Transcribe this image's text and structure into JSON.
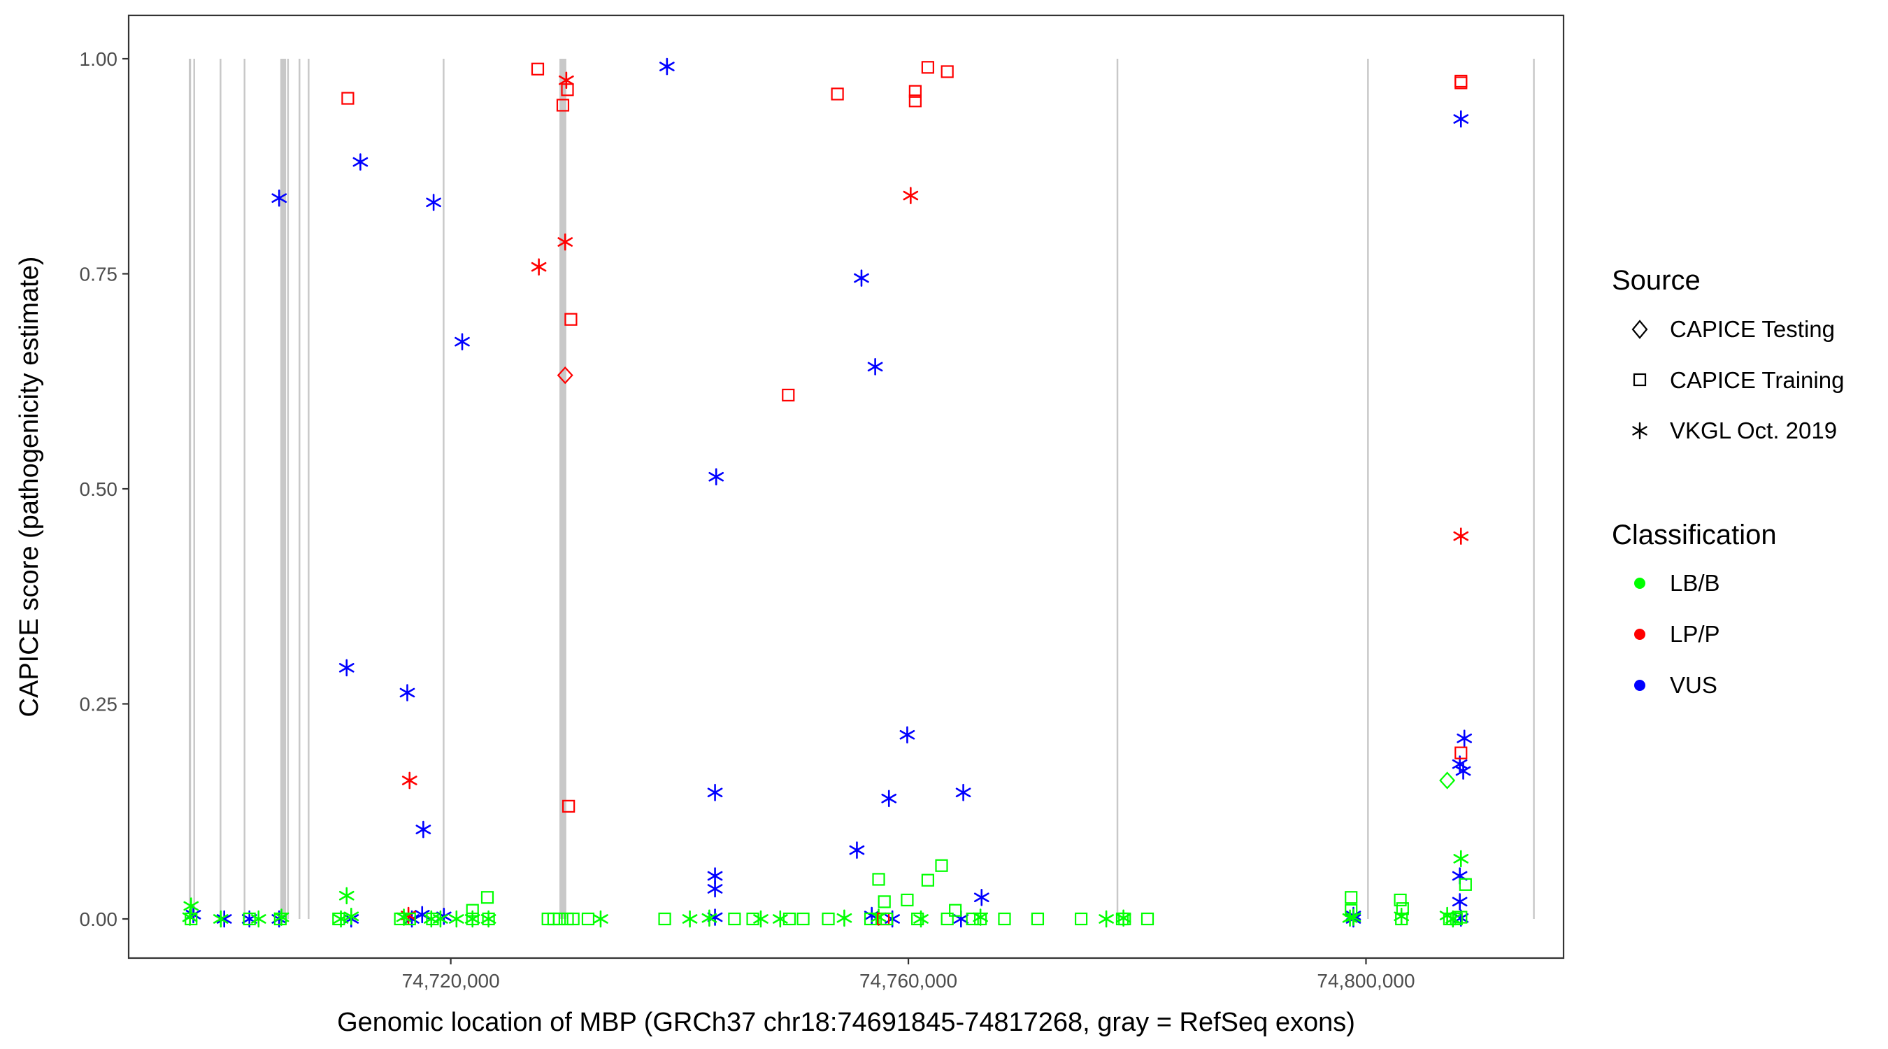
{
  "chart_data": {
    "type": "scatter",
    "xlabel": "Genomic location of MBP (GRCh37 chr18:74691845-74817268, gray = RefSeq exons)",
    "ylabel": "CAPICE score (pathogenicity estimate)",
    "xlim": [
      74691845,
      74817268
    ],
    "ylim": [
      0,
      1
    ],
    "x_ticks": [
      74720000,
      74760000,
      74800000
    ],
    "x_tick_labels": [
      "74,720,000",
      "74,760,000",
      "74,800,000"
    ],
    "y_ticks": [
      0,
      0.25,
      0.5,
      0.75,
      1
    ],
    "y_tick_labels": [
      "0.00",
      "0.25",
      "0.50",
      "0.75",
      "1.00"
    ],
    "grid": false,
    "exons": [
      {
        "start": 74697100,
        "end": 74697300
      },
      {
        "start": 74697500,
        "end": 74697650
      },
      {
        "start": 74699800,
        "end": 74699950
      },
      {
        "start": 74701900,
        "end": 74702050
      },
      {
        "start": 74705100,
        "end": 74705600
      },
      {
        "start": 74705700,
        "end": 74705850
      },
      {
        "start": 74706700,
        "end": 74706850
      },
      {
        "start": 74707500,
        "end": 74707650
      },
      {
        "start": 74719300,
        "end": 74719450
      },
      {
        "start": 74729500,
        "end": 74730100
      },
      {
        "start": 74778200,
        "end": 74778350
      },
      {
        "start": 74800100,
        "end": 74800250
      },
      {
        "start": 74814600,
        "end": 74814750
      }
    ],
    "legend": {
      "position": "right",
      "source_title": "Source",
      "source": [
        {
          "label": "CAPICE Testing",
          "shape": "diamond"
        },
        {
          "label": "CAPICE Training",
          "shape": "square"
        },
        {
          "label": "VKGL Oct. 2019",
          "shape": "asterisk"
        }
      ],
      "class_title": "Classification",
      "classification": [
        {
          "label": "LB/B",
          "color": "#00ff00"
        },
        {
          "label": "LP/P",
          "color": "#ff0000"
        },
        {
          "label": "VUS",
          "color": "#0000ff"
        }
      ]
    },
    "colors": {
      "LB/B": "#00ff00",
      "LP/P": "#ff0000",
      "VUS": "#0000ff",
      "exon": "#c8c8c8"
    },
    "series": [
      {
        "source": "VKGL Oct. 2019",
        "classification": "VUS",
        "points": [
          [
            74697500,
            0.005
          ],
          [
            74700200,
            0.0
          ],
          [
            74702400,
            0.0
          ],
          [
            74705000,
            0.838
          ],
          [
            74705000,
            0.0
          ],
          [
            74710900,
            0.292
          ],
          [
            74711300,
            0.0
          ],
          [
            74712100,
            0.88
          ],
          [
            74716200,
            0.263
          ],
          [
            74716600,
            0.0
          ],
          [
            74717600,
            0.104
          ],
          [
            74717500,
            0.005
          ],
          [
            74718500,
            0.833
          ],
          [
            74719400,
            0.003
          ],
          [
            74721000,
            0.671
          ],
          [
            74738900,
            0.991
          ],
          [
            74743200,
            0.514
          ],
          [
            74743100,
            0.147
          ],
          [
            74743100,
            0.05
          ],
          [
            74743100,
            0.035
          ],
          [
            74743100,
            0.002
          ],
          [
            74755500,
            0.08
          ],
          [
            74755900,
            0.745
          ],
          [
            74757100,
            0.642
          ],
          [
            74756800,
            0.004
          ],
          [
            74758300,
            0.14
          ],
          [
            74758600,
            0.0
          ],
          [
            74759900,
            0.214
          ],
          [
            74764800,
            0.147
          ],
          [
            74764600,
            0.0
          ],
          [
            74766400,
            0.025
          ],
          [
            74798900,
            0.004
          ],
          [
            74798900,
            0.0
          ],
          [
            74808300,
            0.93
          ],
          [
            74808600,
            0.21
          ],
          [
            74808200,
            0.18
          ],
          [
            74808500,
            0.172
          ],
          [
            74808200,
            0.05
          ],
          [
            74808200,
            0.02
          ],
          [
            74808300,
            0.001
          ]
        ]
      },
      {
        "source": "VKGL Oct. 2019",
        "classification": "LP/P",
        "points": [
          [
            74716400,
            0.161
          ],
          [
            74716300,
            0.004
          ],
          [
            74727700,
            0.758
          ],
          [
            74730000,
            0.787
          ],
          [
            74730100,
            0.975
          ],
          [
            74760200,
            0.841
          ],
          [
            74808300,
            0.445
          ]
        ]
      },
      {
        "source": "VKGL Oct. 2019",
        "classification": "LB/B",
        "points": [
          [
            74697300,
            0.015
          ],
          [
            74697200,
            0.002
          ],
          [
            74699900,
            0.0
          ],
          [
            74703200,
            0.0
          ],
          [
            74705200,
            0.002
          ],
          [
            74710400,
            0.0
          ],
          [
            74710900,
            0.027
          ],
          [
            74711300,
            0.003
          ],
          [
            74715900,
            0.002
          ],
          [
            74718300,
            0.0
          ],
          [
            74719100,
            0.0
          ],
          [
            74720500,
            0.0
          ],
          [
            74721900,
            0.0
          ],
          [
            74723300,
            0.0
          ],
          [
            74733100,
            0.0
          ],
          [
            74740900,
            0.0
          ],
          [
            74742600,
            0.001
          ],
          [
            74747100,
            0.0
          ],
          [
            74748800,
            0.0
          ],
          [
            74754400,
            0.001
          ],
          [
            74757400,
            0.002
          ],
          [
            74761100,
            0.0
          ],
          [
            74766300,
            0.002
          ],
          [
            74777300,
            0.0
          ],
          [
            74778800,
            0.001
          ],
          [
            74798600,
            0.001
          ],
          [
            74798900,
            0.002
          ],
          [
            74803100,
            0.003
          ],
          [
            74807100,
            0.004
          ],
          [
            74807600,
            0.0
          ],
          [
            74808300,
            0.07
          ]
        ]
      },
      {
        "source": "CAPICE Training",
        "classification": "LP/P",
        "points": [
          [
            74711000,
            0.954
          ],
          [
            74727600,
            0.988
          ],
          [
            74729800,
            0.946
          ],
          [
            74730200,
            0.964
          ],
          [
            74730500,
            0.697
          ],
          [
            74730300,
            0.131
          ],
          [
            74749500,
            0.609
          ],
          [
            74753800,
            0.959
          ],
          [
            74757800,
            0.0
          ],
          [
            74760600,
            0.962
          ],
          [
            74760600,
            0.951
          ],
          [
            74761700,
            0.99
          ],
          [
            74763400,
            0.985
          ],
          [
            74808300,
            0.974
          ],
          [
            74808300,
            0.972
          ],
          [
            74808300,
            0.193
          ]
        ]
      },
      {
        "source": "CAPICE Training",
        "classification": "LB/B",
        "points": [
          [
            74697300,
            0.0
          ],
          [
            74702400,
            0.0
          ],
          [
            74705100,
            0.0
          ],
          [
            74710200,
            0.0
          ],
          [
            74715600,
            0.0
          ],
          [
            74716400,
            0.0
          ],
          [
            74718400,
            0.0
          ],
          [
            74721900,
            0.0
          ],
          [
            74721900,
            0.01
          ],
          [
            74723200,
            0.025
          ],
          [
            74723300,
            0.0
          ],
          [
            74728500,
            0.0
          ],
          [
            74729000,
            0.0
          ],
          [
            74729500,
            0.0
          ],
          [
            74730200,
            0.0
          ],
          [
            74730700,
            0.0
          ],
          [
            74732000,
            0.0
          ],
          [
            74738700,
            0.0
          ],
          [
            74744800,
            0.0
          ],
          [
            74746400,
            0.0
          ],
          [
            74749600,
            0.0
          ],
          [
            74750800,
            0.0
          ],
          [
            74753000,
            0.0
          ],
          [
            74756700,
            0.0
          ],
          [
            74757400,
            0.046
          ],
          [
            74757900,
            0.02
          ],
          [
            74758100,
            0.0
          ],
          [
            74759900,
            0.022
          ],
          [
            74760800,
            0.0
          ],
          [
            74761700,
            0.045
          ],
          [
            74762900,
            0.062
          ],
          [
            74763400,
            0.0
          ],
          [
            74764100,
            0.01
          ],
          [
            74765600,
            0.0
          ],
          [
            74766300,
            0.0
          ],
          [
            74768400,
            0.0
          ],
          [
            74771300,
            0.0
          ],
          [
            74775100,
            0.0
          ],
          [
            74778700,
            0.0
          ],
          [
            74778900,
            0.0
          ],
          [
            74780900,
            0.0
          ],
          [
            74798700,
            0.025
          ],
          [
            74798700,
            0.01
          ],
          [
            74803000,
            0.022
          ],
          [
            74803200,
            0.012
          ],
          [
            74803100,
            0.0
          ],
          [
            74807300,
            0.0
          ],
          [
            74807900,
            0.0
          ],
          [
            74808300,
            0.002
          ],
          [
            74808700,
            0.04
          ]
        ]
      },
      {
        "source": "CAPICE Testing",
        "classification": "LP/P",
        "points": [
          [
            74730000,
            0.632
          ]
        ]
      },
      {
        "source": "CAPICE Testing",
        "classification": "LB/B",
        "points": [
          [
            74807100,
            0.161
          ]
        ]
      }
    ]
  }
}
